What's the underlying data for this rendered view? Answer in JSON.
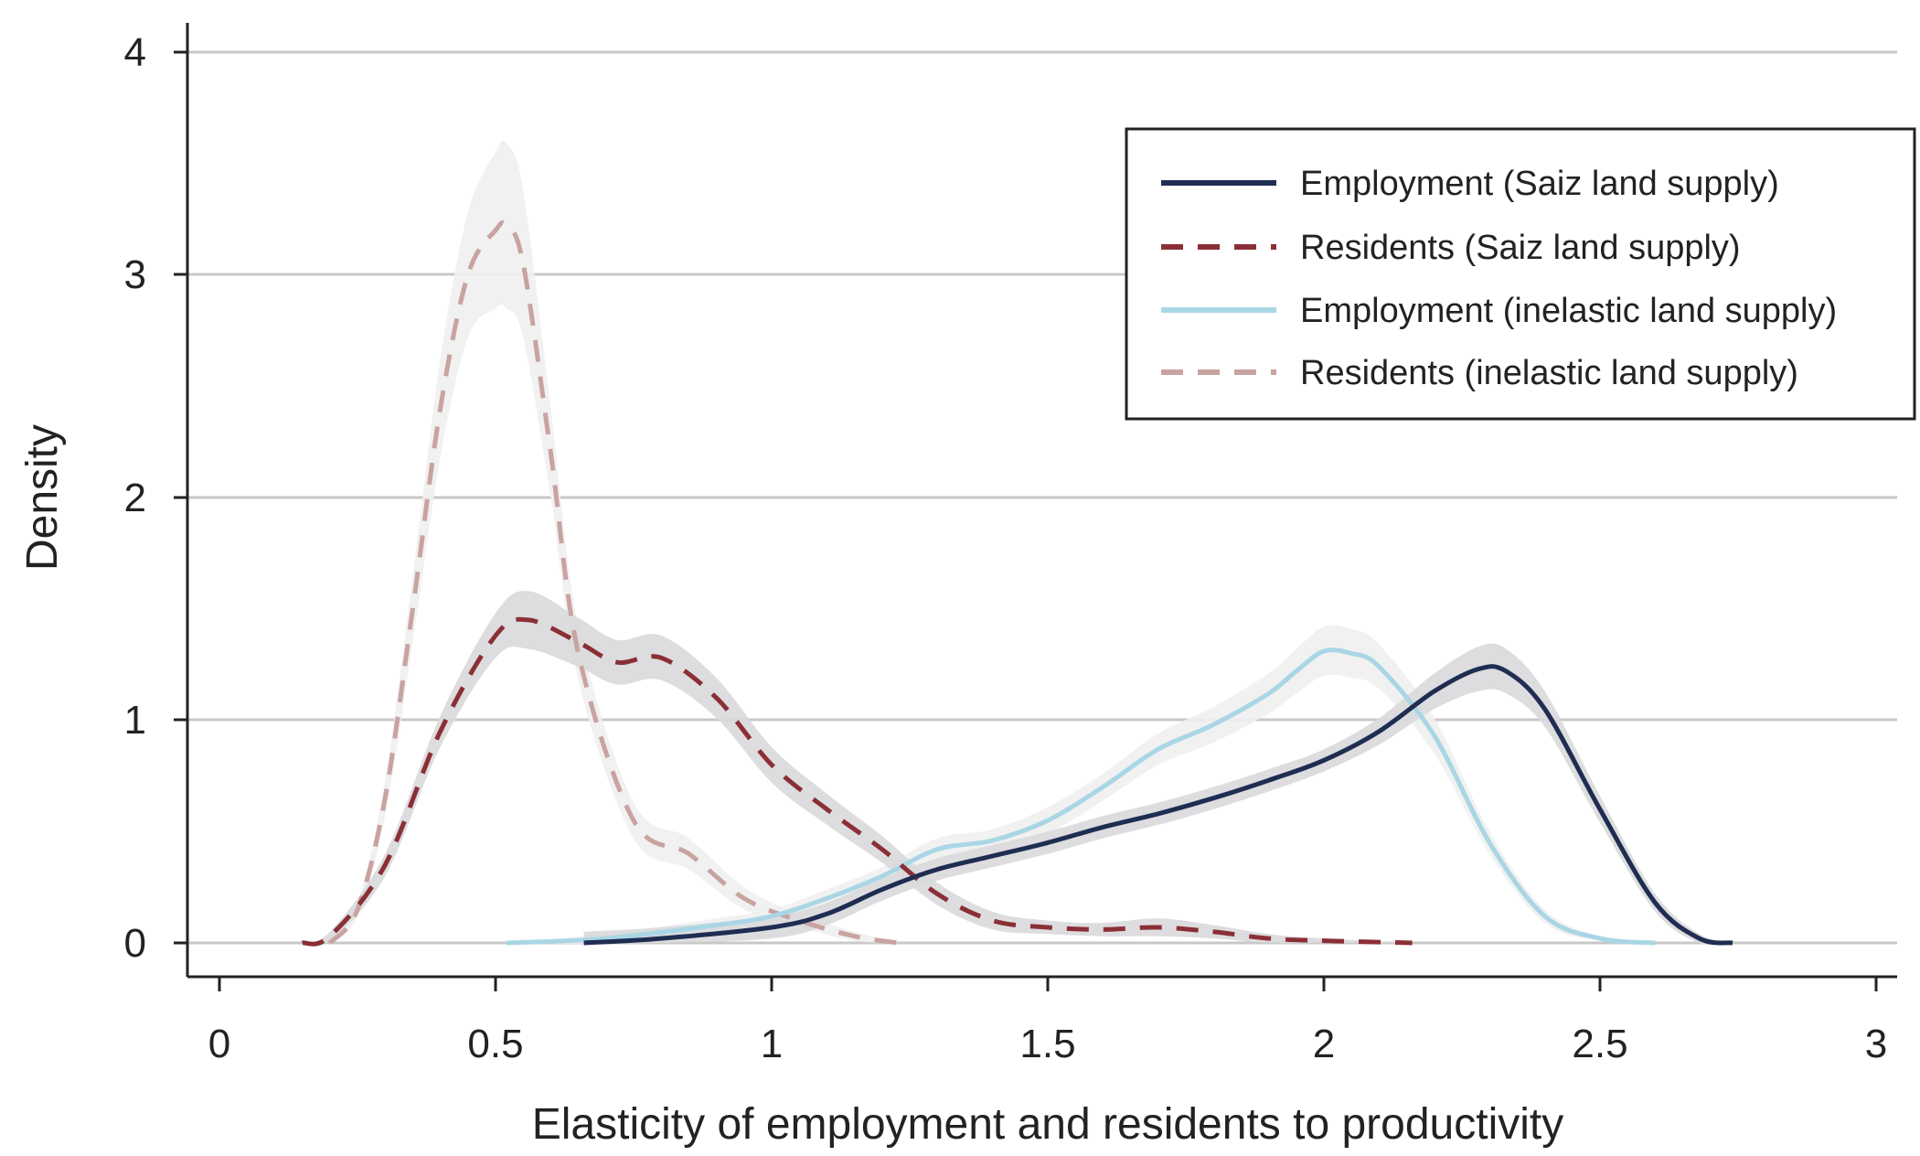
{
  "chart_data": {
    "type": "line",
    "title": "",
    "xlabel": "Elasticity of employment and residents to productivity",
    "ylabel": "Density",
    "xlim": [
      0,
      3
    ],
    "ylim": [
      0,
      4
    ],
    "x_ticks": [
      "0",
      "0.5",
      "1",
      "1.5",
      "2",
      "2.5",
      "3"
    ],
    "y_ticks": [
      "0",
      "1",
      "2",
      "3",
      "4"
    ],
    "grid": "horizontal",
    "legend_position": "top-right",
    "colors": {
      "employment_saiz": "#1f2d52",
      "residents_saiz": "#8b2f36",
      "employment_inelastic": "#a9d6e5",
      "residents_inelastic": "#c8a3a0",
      "band_saiz": "#d9d9dc",
      "band_inelastic": "#efefef"
    },
    "series": [
      {
        "name": "Employment (Saiz land supply)",
        "style": "solid",
        "x": [
          0.66,
          0.8,
          1.0,
          1.1,
          1.2,
          1.3,
          1.4,
          1.5,
          1.6,
          1.7,
          1.8,
          1.9,
          2.0,
          2.1,
          2.2,
          2.28,
          2.33,
          2.4,
          2.5,
          2.6,
          2.68,
          2.74
        ],
        "y": [
          0.0,
          0.02,
          0.07,
          0.13,
          0.24,
          0.33,
          0.39,
          0.45,
          0.52,
          0.58,
          0.65,
          0.73,
          0.82,
          0.95,
          1.13,
          1.23,
          1.22,
          1.05,
          0.6,
          0.18,
          0.02,
          0.0
        ],
        "band": [
          0.05,
          0.05,
          0.05,
          0.05,
          0.05,
          0.05,
          0.05,
          0.05,
          0.05,
          0.05,
          0.05,
          0.05,
          0.05,
          0.06,
          0.08,
          0.1,
          0.1,
          0.08,
          0.06,
          0.04,
          0.02,
          0.0
        ]
      },
      {
        "name": "Residents (Saiz land supply)",
        "style": "dashed",
        "x": [
          0.15,
          0.2,
          0.3,
          0.4,
          0.5,
          0.56,
          0.65,
          0.72,
          0.8,
          0.9,
          1.0,
          1.1,
          1.2,
          1.3,
          1.4,
          1.5,
          1.6,
          1.7,
          1.8,
          1.9,
          2.0,
          2.16
        ],
        "y": [
          0.0,
          0.03,
          0.35,
          0.95,
          1.38,
          1.45,
          1.35,
          1.26,
          1.28,
          1.1,
          0.8,
          0.6,
          0.42,
          0.22,
          0.1,
          0.07,
          0.06,
          0.07,
          0.05,
          0.02,
          0.01,
          0.0
        ],
        "band": [
          0.0,
          0.02,
          0.05,
          0.07,
          0.1,
          0.13,
          0.11,
          0.1,
          0.1,
          0.09,
          0.08,
          0.07,
          0.06,
          0.05,
          0.04,
          0.03,
          0.03,
          0.04,
          0.03,
          0.02,
          0.01,
          0.0
        ]
      },
      {
        "name": "Employment (inelastic land supply)",
        "style": "solid",
        "x": [
          0.52,
          0.7,
          0.9,
          1.0,
          1.1,
          1.2,
          1.3,
          1.4,
          1.5,
          1.6,
          1.7,
          1.8,
          1.9,
          1.95,
          2.0,
          2.05,
          2.1,
          2.2,
          2.3,
          2.4,
          2.5,
          2.6
        ],
        "y": [
          0.0,
          0.02,
          0.08,
          0.12,
          0.2,
          0.3,
          0.42,
          0.46,
          0.55,
          0.7,
          0.87,
          0.98,
          1.12,
          1.22,
          1.31,
          1.3,
          1.24,
          0.93,
          0.45,
          0.12,
          0.02,
          0.0
        ],
        "band": [
          0.0,
          0.02,
          0.03,
          0.03,
          0.04,
          0.04,
          0.05,
          0.05,
          0.06,
          0.06,
          0.07,
          0.08,
          0.09,
          0.1,
          0.11,
          0.11,
          0.1,
          0.08,
          0.05,
          0.03,
          0.01,
          0.0
        ]
      },
      {
        "name": "Residents (inelastic land supply)",
        "style": "dashed",
        "x": [
          0.2,
          0.25,
          0.3,
          0.35,
          0.4,
          0.45,
          0.5,
          0.52,
          0.55,
          0.6,
          0.65,
          0.75,
          0.85,
          0.95,
          1.05,
          1.15,
          1.23
        ],
        "y": [
          0.0,
          0.15,
          0.65,
          1.5,
          2.4,
          3.0,
          3.2,
          3.22,
          3.05,
          2.2,
          1.3,
          0.55,
          0.4,
          0.2,
          0.1,
          0.03,
          0.0
        ],
        "band": [
          0.0,
          0.03,
          0.08,
          0.15,
          0.22,
          0.28,
          0.35,
          0.37,
          0.33,
          0.2,
          0.12,
          0.08,
          0.07,
          0.05,
          0.03,
          0.02,
          0.0
        ]
      }
    ]
  }
}
